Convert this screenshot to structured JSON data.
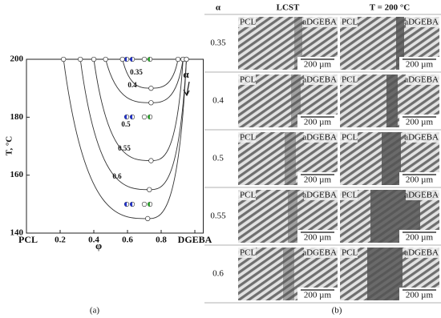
{
  "chart_data": {
    "type": "line",
    "xlabel": "φ",
    "ylabel": "T, °C",
    "xlim": [
      0,
      1.05
    ],
    "ylim": [
      140,
      200
    ],
    "xticks": [
      {
        "value": 0,
        "label": "PCL"
      },
      0.2,
      0.4,
      0.6,
      0.8,
      {
        "value": 1,
        "label": "DGEBA"
      }
    ],
    "yticks": [
      140,
      160,
      180,
      200
    ],
    "annotation": "α",
    "color": "#333333",
    "series": [
      {
        "name": "0.35",
        "x": [
          0.57,
          0.74,
          0.9
        ],
        "values": [
          200,
          190,
          200
        ]
      },
      {
        "name": "0.4",
        "x": [
          0.47,
          0.74,
          0.93
        ],
        "values": [
          200,
          185,
          200
        ]
      },
      {
        "name": "0.5",
        "x": [
          0.4,
          0.74,
          0.93
        ],
        "values": [
          200,
          165,
          200
        ]
      },
      {
        "name": "0.55",
        "x": [
          0.32,
          0.73,
          0.95
        ],
        "values": [
          200,
          155,
          200
        ]
      },
      {
        "name": "0.6",
        "x": [
          0.22,
          0.72,
          0.95
        ],
        "values": [
          200,
          145,
          200
        ]
      }
    ]
  },
  "labels": {
    "a": "(a)",
    "b": "(b)"
  },
  "panel_b": {
    "headers": [
      "α",
      "LCST",
      "T = 200 °C"
    ],
    "rows": [
      "0.35",
      "0.4",
      "0.5",
      "0.55",
      "0.6"
    ],
    "image_texts": [
      "PCL",
      "aDGEBA",
      "200 µm"
    ]
  }
}
